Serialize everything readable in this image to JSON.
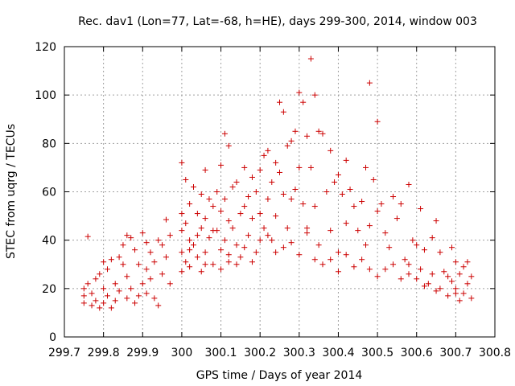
{
  "chart_data": {
    "type": "scatter",
    "title": "Rec. dav1 (Lon=77, Lat=-68, h=HE), days 299-300, 2014, window 003",
    "xlabel": "GPS time / Days of year 2014",
    "ylabel": "STEC from uqrg / TECUs",
    "xlim": [
      299.7,
      300.8
    ],
    "ylim": [
      0,
      120
    ],
    "xticks": [
      299.7,
      299.8,
      299.9,
      300,
      300.1,
      300.2,
      300.3,
      300.4,
      300.5,
      300.6,
      300.7,
      300.8
    ],
    "xtick_labels": [
      "299.7",
      "299.8",
      "299.9",
      "300",
      "300.1",
      "300.2",
      "300.3",
      "300.4",
      "300.5",
      "300.6",
      "300.7",
      "300.8"
    ],
    "yticks": [
      0,
      20,
      40,
      60,
      80,
      100,
      120
    ],
    "ytick_labels": [
      "0",
      "20",
      "40",
      "60",
      "80",
      "100",
      "120"
    ],
    "grid": true,
    "marker": "+",
    "marker_color": "#cc0000",
    "series": [
      {
        "name": "STEC",
        "points": [
          [
            299.76,
            41.5
          ],
          [
            299.75,
            20
          ],
          [
            299.75,
            17
          ],
          [
            299.75,
            14
          ],
          [
            299.76,
            22
          ],
          [
            299.77,
            18
          ],
          [
            299.77,
            13
          ],
          [
            299.78,
            24
          ],
          [
            299.78,
            15
          ],
          [
            299.79,
            26
          ],
          [
            299.79,
            12
          ],
          [
            299.8,
            31
          ],
          [
            299.8,
            20
          ],
          [
            299.8,
            14
          ],
          [
            299.81,
            28
          ],
          [
            299.81,
            17
          ],
          [
            299.82,
            32
          ],
          [
            299.82,
            12
          ],
          [
            299.83,
            22
          ],
          [
            299.83,
            15
          ],
          [
            299.84,
            33
          ],
          [
            299.84,
            19
          ],
          [
            299.85,
            30
          ],
          [
            299.85,
            38
          ],
          [
            299.86,
            42
          ],
          [
            299.86,
            25
          ],
          [
            299.86,
            16
          ],
          [
            299.87,
            41
          ],
          [
            299.87,
            20
          ],
          [
            299.88,
            36
          ],
          [
            299.88,
            14
          ],
          [
            299.89,
            30
          ],
          [
            299.89,
            17
          ],
          [
            299.9,
            43
          ],
          [
            299.9,
            22
          ],
          [
            299.91,
            39
          ],
          [
            299.91,
            28
          ],
          [
            299.91,
            18
          ],
          [
            299.92,
            35
          ],
          [
            299.92,
            24
          ],
          [
            299.93,
            31
          ],
          [
            299.93,
            16
          ],
          [
            299.94,
            40
          ],
          [
            299.94,
            13
          ],
          [
            299.95,
            38
          ],
          [
            299.95,
            26
          ],
          [
            299.96,
            48.5
          ],
          [
            299.96,
            33
          ],
          [
            299.97,
            42
          ],
          [
            299.97,
            22
          ],
          [
            300.0,
            72
          ],
          [
            300.0,
            51
          ],
          [
            300.0,
            44
          ],
          [
            300.0,
            35
          ],
          [
            300.0,
            27
          ],
          [
            300.01,
            65
          ],
          [
            300.01,
            47
          ],
          [
            300.01,
            31
          ],
          [
            300.02,
            55
          ],
          [
            300.02,
            40
          ],
          [
            300.02,
            29
          ],
          [
            300.03,
            62
          ],
          [
            300.03,
            38
          ],
          [
            300.04,
            51
          ],
          [
            300.04,
            33
          ],
          [
            300.05,
            59
          ],
          [
            300.05,
            45
          ],
          [
            300.05,
            27
          ],
          [
            300.06,
            69
          ],
          [
            300.06,
            49
          ],
          [
            300.06,
            35
          ],
          [
            300.07,
            57
          ],
          [
            300.07,
            41
          ],
          [
            300.08,
            54
          ],
          [
            300.08,
            30
          ],
          [
            300.09,
            60
          ],
          [
            300.09,
            44
          ],
          [
            300.1,
            71
          ],
          [
            300.1,
            52
          ],
          [
            300.1,
            36
          ],
          [
            300.11,
            84
          ],
          [
            300.11,
            57
          ],
          [
            300.11,
            40
          ],
          [
            300.12,
            79
          ],
          [
            300.12,
            48
          ],
          [
            300.12,
            31
          ],
          [
            300.13,
            62
          ],
          [
            300.13,
            45
          ],
          [
            300.14,
            64
          ],
          [
            300.14,
            38
          ],
          [
            300.15,
            51
          ],
          [
            300.15,
            33
          ],
          [
            300.16,
            70
          ],
          [
            300.16,
            54
          ],
          [
            300.17,
            58
          ],
          [
            300.17,
            42
          ],
          [
            300.18,
            66
          ],
          [
            300.18,
            49
          ],
          [
            300.19,
            60
          ],
          [
            300.19,
            35
          ],
          [
            300.2,
            69
          ],
          [
            300.2,
            51
          ],
          [
            300.21,
            75
          ],
          [
            300.21,
            45
          ],
          [
            300.22,
            77
          ],
          [
            300.22,
            57
          ],
          [
            300.23,
            64
          ],
          [
            300.23,
            40
          ],
          [
            300.24,
            72
          ],
          [
            300.24,
            50
          ],
          [
            300.25,
            97
          ],
          [
            300.25,
            68
          ],
          [
            300.26,
            93
          ],
          [
            300.26,
            59
          ],
          [
            300.27,
            79
          ],
          [
            300.27,
            45
          ],
          [
            300.28,
            81
          ],
          [
            300.28,
            57
          ],
          [
            300.29,
            85
          ],
          [
            300.29,
            61
          ],
          [
            300.3,
            101
          ],
          [
            300.3,
            70
          ],
          [
            300.31,
            97
          ],
          [
            300.31,
            55
          ],
          [
            300.32,
            83
          ],
          [
            300.32,
            43
          ],
          [
            300.33,
            115
          ],
          [
            300.33,
            70
          ],
          [
            300.34,
            100
          ],
          [
            300.34,
            54
          ],
          [
            300.35,
            85
          ],
          [
            300.35,
            38
          ],
          [
            300.36,
            84
          ],
          [
            300.37,
            60
          ],
          [
            300.38,
            77
          ],
          [
            300.38,
            44
          ],
          [
            300.39,
            64
          ],
          [
            300.4,
            67
          ],
          [
            300.4,
            35
          ],
          [
            300.41,
            59
          ],
          [
            300.42,
            73
          ],
          [
            300.42,
            47
          ],
          [
            300.43,
            61
          ],
          [
            300.44,
            54
          ],
          [
            300.45,
            44
          ],
          [
            300.46,
            56
          ],
          [
            300.47,
            70
          ],
          [
            300.47,
            38
          ],
          [
            300.48,
            105
          ],
          [
            300.48,
            46
          ],
          [
            300.49,
            65
          ],
          [
            300.5,
            89
          ],
          [
            300.5,
            52
          ],
          [
            300.51,
            55
          ],
          [
            300.52,
            43
          ],
          [
            300.53,
            37
          ],
          [
            300.54,
            58
          ],
          [
            300.55,
            49
          ],
          [
            300.56,
            55
          ],
          [
            300.57,
            32
          ],
          [
            300.58,
            63
          ],
          [
            300.58,
            26
          ],
          [
            300.59,
            40
          ],
          [
            300.6,
            38
          ],
          [
            300.61,
            53
          ],
          [
            300.61,
            28
          ],
          [
            300.62,
            36
          ],
          [
            300.63,
            22
          ],
          [
            300.64,
            41
          ],
          [
            300.65,
            48
          ],
          [
            300.65,
            19
          ],
          [
            300.66,
            35
          ],
          [
            300.67,
            27
          ],
          [
            300.68,
            17
          ],
          [
            300.69,
            37
          ],
          [
            300.69,
            23
          ],
          [
            300.7,
            31
          ],
          [
            300.7,
            20
          ],
          [
            300.71,
            26
          ],
          [
            300.71,
            15
          ],
          [
            300.72,
            29
          ],
          [
            300.72,
            18
          ],
          [
            300.73,
            31
          ],
          [
            300.73,
            22
          ],
          [
            300.74,
            25
          ],
          [
            300.74,
            16
          ],
          [
            300.02,
            36
          ],
          [
            300.04,
            42
          ],
          [
            300.06,
            30
          ],
          [
            300.08,
            44
          ],
          [
            300.1,
            28
          ],
          [
            300.12,
            34
          ],
          [
            300.14,
            30
          ],
          [
            300.16,
            37
          ],
          [
            300.18,
            31
          ],
          [
            300.2,
            40
          ],
          [
            300.22,
            42
          ],
          [
            300.24,
            35
          ],
          [
            300.26,
            37
          ],
          [
            300.28,
            39
          ],
          [
            300.3,
            34
          ],
          [
            300.32,
            45
          ],
          [
            300.34,
            32
          ],
          [
            300.36,
            30
          ],
          [
            300.38,
            32
          ],
          [
            300.4,
            27
          ],
          [
            300.42,
            34
          ],
          [
            300.44,
            29
          ],
          [
            300.46,
            32
          ],
          [
            300.48,
            28
          ],
          [
            300.5,
            25
          ],
          [
            300.52,
            28
          ],
          [
            300.54,
            30
          ],
          [
            300.56,
            24
          ],
          [
            300.58,
            30
          ],
          [
            300.6,
            24
          ],
          [
            300.62,
            21
          ],
          [
            300.64,
            26
          ],
          [
            300.66,
            20
          ],
          [
            300.68,
            25
          ],
          [
            300.7,
            18
          ]
        ]
      }
    ]
  }
}
